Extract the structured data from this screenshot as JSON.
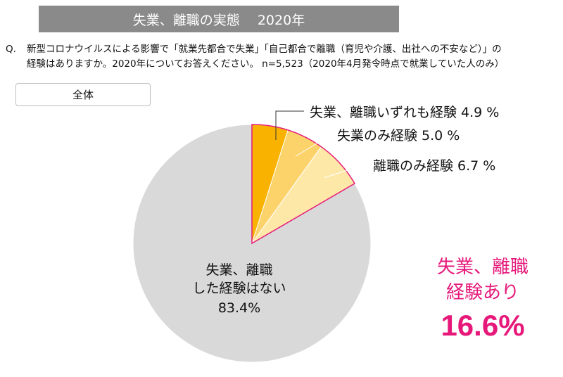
{
  "header": {
    "title": "失業、離職の実態　 2020年"
  },
  "question": {
    "label": "Q.",
    "line1": "新型コロナウイルスによる影響で「就業先都合で失業」「自己都合で離職（育児や介護、出社への不安など）」の",
    "line2": "経験はありますか。2020年についてお答えください。 n=5,523（2020年4月発令時点で就業していた人のみ）"
  },
  "segment": {
    "label": "全体"
  },
  "callout": {
    "line1": "失業、離職",
    "line2": "経験あり",
    "value": "16.6%"
  },
  "chart_data": {
    "type": "pie",
    "slices": [
      {
        "label": "失業、離職いずれも経験",
        "value": 4.9,
        "display": "失業、離職いずれも経験  4.9 %",
        "color": "#f9b200"
      },
      {
        "label": "失業のみ経験",
        "value": 5.0,
        "display": "失業のみ経験  5.0 %",
        "color": "#fcd36a"
      },
      {
        "label": "離職のみ経験",
        "value": 6.7,
        "display": "離職のみ経験  6.7 %",
        "color": "#fde8a8"
      },
      {
        "label": "失業、離職した経験はない",
        "value": 83.4,
        "display_lines": [
          "失業、離職",
          "した経験はない",
          "83.4%"
        ],
        "color": "#d9d9d9"
      }
    ],
    "highlight_color": "#e6197a"
  }
}
